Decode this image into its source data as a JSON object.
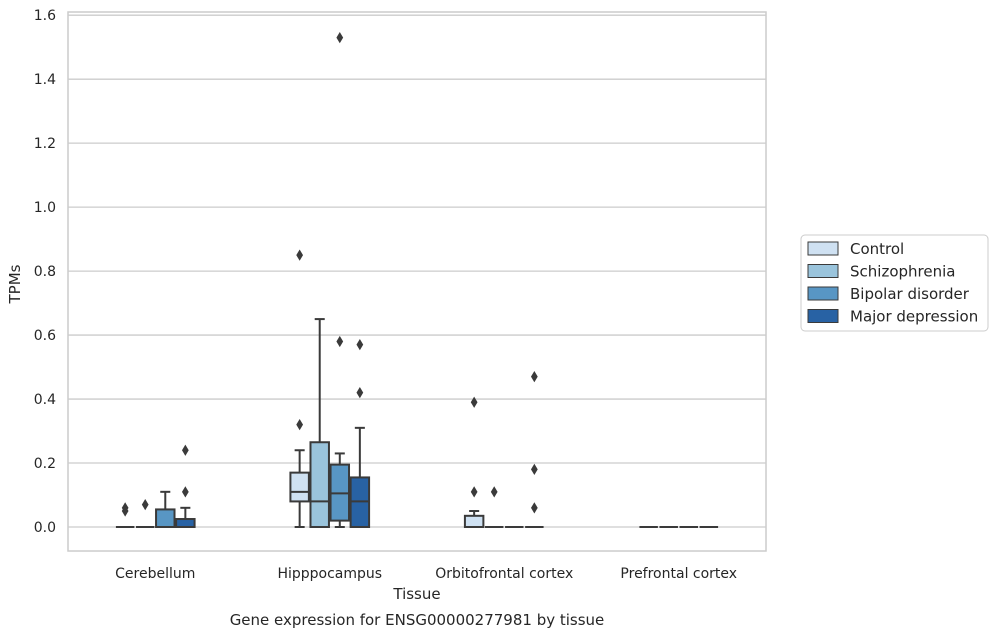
{
  "chart_data": {
    "type": "box",
    "caption": "Gene expression for ENSG00000277981 by tissue",
    "xlabel": "Tissue",
    "ylabel": "TPMs",
    "ylim": [
      -0.075,
      1.61
    ],
    "yticks": [
      0.0,
      0.2,
      0.4,
      0.6,
      0.8,
      1.0,
      1.2,
      1.4,
      1.6
    ],
    "ytick_labels": [
      "0.0",
      "0.2",
      "0.4",
      "0.6",
      "0.8",
      "1.0",
      "1.2",
      "1.4",
      "1.6"
    ],
    "grid": "horizontal",
    "legend_position": "right",
    "categories": [
      "Cerebellum",
      "Hipppocampus",
      "Orbitofrontal cortex",
      "Prefrontal cortex"
    ],
    "series": [
      {
        "name": "Control",
        "color": "#cfe1f2",
        "boxes": [
          {
            "whislo": 0,
            "q1": 0,
            "med": 0,
            "q3": 0,
            "whishi": 0,
            "fliers": [
              0.05,
              0.06
            ]
          },
          {
            "whislo": 0,
            "q1": 0.08,
            "med": 0.11,
            "q3": 0.17,
            "whishi": 0.24,
            "fliers": [
              0.32,
              0.85
            ]
          },
          {
            "whislo": 0,
            "q1": 0,
            "med": 0,
            "q3": 0.035,
            "whishi": 0.05,
            "fliers": [
              0.11,
              0.39
            ]
          },
          {
            "whislo": 0,
            "q1": 0,
            "med": 0,
            "q3": 0,
            "whishi": 0,
            "fliers": []
          }
        ]
      },
      {
        "name": "Schizophrenia",
        "color": "#9ac4dc",
        "boxes": [
          {
            "whislo": 0,
            "q1": 0,
            "med": 0,
            "q3": 0,
            "whishi": 0,
            "fliers": [
              0.07
            ]
          },
          {
            "whislo": 0,
            "q1": 0,
            "med": 0.08,
            "q3": 0.265,
            "whishi": 0.65,
            "fliers": []
          },
          {
            "whislo": 0,
            "q1": 0,
            "med": 0,
            "q3": 0,
            "whishi": 0,
            "fliers": [
              0.11
            ]
          },
          {
            "whislo": 0,
            "q1": 0,
            "med": 0,
            "q3": 0,
            "whishi": 0,
            "fliers": []
          }
        ]
      },
      {
        "name": "Bipolar disorder",
        "color": "#5896c4",
        "boxes": [
          {
            "whislo": 0,
            "q1": 0,
            "med": 0,
            "q3": 0.055,
            "whishi": 0.11,
            "fliers": []
          },
          {
            "whislo": 0,
            "q1": 0.02,
            "med": 0.105,
            "q3": 0.195,
            "whishi": 0.23,
            "fliers": [
              0.58,
              1.53
            ]
          },
          {
            "whislo": 0,
            "q1": 0,
            "med": 0,
            "q3": 0,
            "whishi": 0,
            "fliers": []
          },
          {
            "whislo": 0,
            "q1": 0,
            "med": 0,
            "q3": 0,
            "whishi": 0,
            "fliers": []
          }
        ]
      },
      {
        "name": "Major depression",
        "color": "#2862a4",
        "boxes": [
          {
            "whislo": 0,
            "q1": 0,
            "med": 0,
            "q3": 0.025,
            "whishi": 0.06,
            "fliers": [
              0.11,
              0.24
            ]
          },
          {
            "whislo": 0,
            "q1": 0,
            "med": 0.08,
            "q3": 0.155,
            "whishi": 0.31,
            "fliers": [
              0.42,
              0.57
            ]
          },
          {
            "whislo": 0,
            "q1": 0,
            "med": 0,
            "q3": 0,
            "whishi": 0,
            "fliers": [
              0.06,
              0.18,
              0.47
            ]
          },
          {
            "whislo": 0,
            "q1": 0,
            "med": 0,
            "q3": 0,
            "whishi": 0,
            "fliers": []
          }
        ]
      }
    ]
  }
}
